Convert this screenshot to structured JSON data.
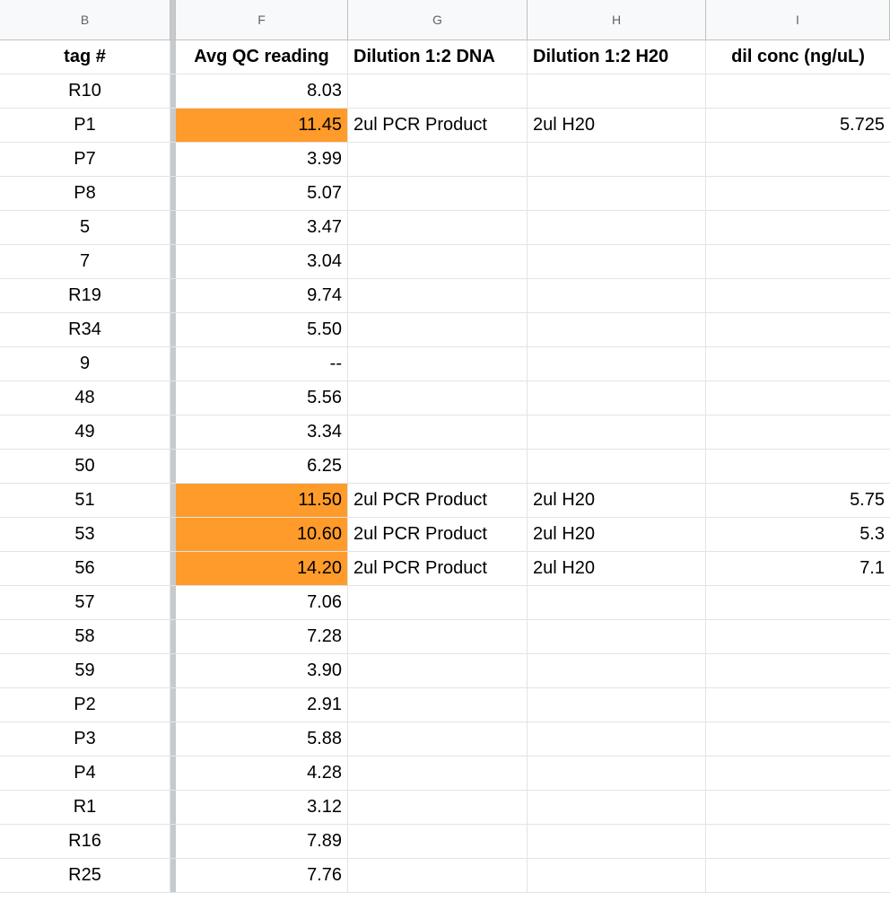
{
  "columns": [
    "B",
    "F",
    "G",
    "H",
    "I"
  ],
  "headers": {
    "tag": "tag #",
    "avg": "Avg QC reading",
    "dna": "Dilution 1:2 DNA",
    "h2o": "Dilution 1:2 H20",
    "conc": "dil conc (ng/uL)"
  },
  "highlight_color": "#ff9b2b",
  "rows": [
    {
      "tag": "R10",
      "avg": "8.03",
      "dna": "",
      "h2o": "",
      "conc": "",
      "highlight": false
    },
    {
      "tag": "P1",
      "avg": "11.45",
      "dna": "2ul PCR Product",
      "h2o": "2ul H20",
      "conc": "5.725",
      "highlight": true
    },
    {
      "tag": "P7",
      "avg": "3.99",
      "dna": "",
      "h2o": "",
      "conc": "",
      "highlight": false
    },
    {
      "tag": "P8",
      "avg": "5.07",
      "dna": "",
      "h2o": "",
      "conc": "",
      "highlight": false
    },
    {
      "tag": "5",
      "avg": "3.47",
      "dna": "",
      "h2o": "",
      "conc": "",
      "highlight": false
    },
    {
      "tag": "7",
      "avg": "3.04",
      "dna": "",
      "h2o": "",
      "conc": "",
      "highlight": false
    },
    {
      "tag": "R19",
      "avg": "9.74",
      "dna": "",
      "h2o": "",
      "conc": "",
      "highlight": false
    },
    {
      "tag": "R34",
      "avg": "5.50",
      "dna": "",
      "h2o": "",
      "conc": "",
      "highlight": false
    },
    {
      "tag": "9",
      "avg": "--",
      "dna": "",
      "h2o": "",
      "conc": "",
      "highlight": false
    },
    {
      "tag": "48",
      "avg": "5.56",
      "dna": "",
      "h2o": "",
      "conc": "",
      "highlight": false
    },
    {
      "tag": "49",
      "avg": "3.34",
      "dna": "",
      "h2o": "",
      "conc": "",
      "highlight": false
    },
    {
      "tag": "50",
      "avg": "6.25",
      "dna": "",
      "h2o": "",
      "conc": "",
      "highlight": false
    },
    {
      "tag": "51",
      "avg": "11.50",
      "dna": "2ul PCR Product",
      "h2o": "2ul H20",
      "conc": "5.75",
      "highlight": true
    },
    {
      "tag": "53",
      "avg": "10.60",
      "dna": "2ul PCR Product",
      "h2o": "2ul H20",
      "conc": "5.3",
      "highlight": true
    },
    {
      "tag": "56",
      "avg": "14.20",
      "dna": "2ul PCR Product",
      "h2o": "2ul H20",
      "conc": "7.1",
      "highlight": true
    },
    {
      "tag": "57",
      "avg": "7.06",
      "dna": "",
      "h2o": "",
      "conc": "",
      "highlight": false
    },
    {
      "tag": "58",
      "avg": "7.28",
      "dna": "",
      "h2o": "",
      "conc": "",
      "highlight": false
    },
    {
      "tag": "59",
      "avg": "3.90",
      "dna": "",
      "h2o": "",
      "conc": "",
      "highlight": false
    },
    {
      "tag": "P2",
      "avg": "2.91",
      "dna": "",
      "h2o": "",
      "conc": "",
      "highlight": false
    },
    {
      "tag": "P3",
      "avg": "5.88",
      "dna": "",
      "h2o": "",
      "conc": "",
      "highlight": false
    },
    {
      "tag": "P4",
      "avg": "4.28",
      "dna": "",
      "h2o": "",
      "conc": "",
      "highlight": false
    },
    {
      "tag": "R1",
      "avg": "3.12",
      "dna": "",
      "h2o": "",
      "conc": "",
      "highlight": false
    },
    {
      "tag": "R16",
      "avg": "7.89",
      "dna": "",
      "h2o": "",
      "conc": "",
      "highlight": false
    },
    {
      "tag": "R25",
      "avg": "7.76",
      "dna": "",
      "h2o": "",
      "conc": "",
      "highlight": false
    }
  ]
}
